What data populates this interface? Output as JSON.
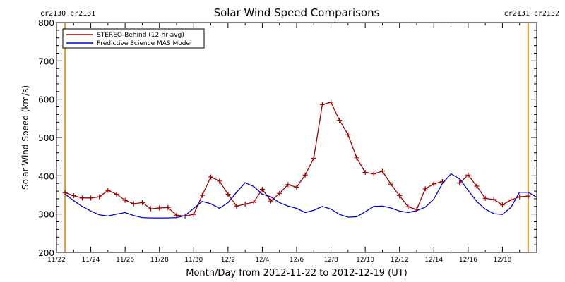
{
  "chart_data": {
    "type": "line",
    "title": "Solar Wind Speed Comparisons",
    "xlabel": "Month/Day from 2012-11-22 to 2012-12-19 (UT)",
    "ylabel": "Solar Wind Speed (km/s)",
    "xlim": [
      "2012-11-22T00:00",
      "2012-12-20T00:00"
    ],
    "ylim": [
      200,
      800
    ],
    "yticks": [
      200,
      300,
      400,
      500,
      600,
      700,
      800
    ],
    "xtick_labels": [
      "11/22",
      "11/24",
      "11/26",
      "11/28",
      "11/30",
      "12/2",
      "12/4",
      "12/6",
      "12/8",
      "12/10",
      "12/12",
      "12/14",
      "12/16",
      "12/18"
    ],
    "grid": false,
    "legend_position": "top-left",
    "rotation_labels": {
      "left": "cr2130 cr2131",
      "right": "cr2131 cr2132",
      "color": "#e8951e"
    },
    "rotation_markers": [
      "2012-11-22T12:00",
      "2012-12-19T12:00"
    ],
    "series": [
      {
        "name": "STEREO-Behind (12-hr avg)",
        "color": "#a00000",
        "marker": "plus",
        "points": [
          [
            "2012-11-22T12:00",
            356
          ],
          [
            "2012-11-23T00:00",
            348
          ],
          [
            "2012-11-23T12:00",
            342
          ],
          [
            "2012-11-24T00:00",
            342
          ],
          [
            "2012-11-24T12:00",
            345
          ],
          [
            "2012-11-25T00:00",
            362
          ],
          [
            "2012-11-25T12:00",
            352
          ],
          [
            "2012-11-26T00:00",
            336
          ],
          [
            "2012-11-26T12:00",
            327
          ],
          [
            "2012-11-27T00:00",
            330
          ],
          [
            "2012-11-27T12:00",
            314
          ],
          [
            "2012-11-28T00:00",
            316
          ],
          [
            "2012-11-28T12:00",
            317
          ],
          [
            "2012-11-29T00:00",
            297
          ],
          [
            "2012-11-29T12:00",
            295
          ],
          [
            "2012-11-30T00:00",
            299
          ],
          [
            "2012-11-30T12:00",
            349
          ],
          [
            "2012-12-01T00:00",
            397
          ],
          [
            "2012-12-01T12:00",
            386
          ],
          [
            "2012-12-02T00:00",
            352
          ],
          [
            "2012-12-02T12:00",
            321
          ],
          [
            "2012-12-03T00:00",
            326
          ],
          [
            "2012-12-03T12:00",
            331
          ],
          [
            "2012-12-04T00:00",
            365
          ],
          [
            "2012-12-04T12:00",
            334
          ],
          [
            "2012-12-05T00:00",
            354
          ],
          [
            "2012-12-05T12:00",
            377
          ],
          [
            "2012-12-06T00:00",
            370
          ],
          [
            "2012-12-06T12:00",
            402
          ],
          [
            "2012-12-07T00:00",
            446
          ],
          [
            "2012-12-07T12:00",
            586
          ],
          [
            "2012-12-08T00:00",
            592
          ],
          [
            "2012-12-08T12:00",
            545
          ],
          [
            "2012-12-09T00:00",
            507
          ],
          [
            "2012-12-09T12:00",
            447
          ],
          [
            "2012-12-10T00:00",
            409
          ],
          [
            "2012-12-10T12:00",
            405
          ],
          [
            "2012-12-11T00:00",
            412
          ],
          [
            "2012-12-11T12:00",
            378
          ],
          [
            "2012-12-12T00:00",
            348
          ],
          [
            "2012-12-12T12:00",
            319
          ],
          [
            "2012-12-13T00:00",
            312
          ],
          [
            "2012-12-13T12:00",
            366
          ],
          [
            "2012-12-14T00:00",
            379
          ],
          [
            "2012-12-14T12:00",
            385
          ],
          null,
          [
            "2012-12-15T12:00",
            381
          ],
          [
            "2012-12-16T00:00",
            402
          ],
          [
            "2012-12-16T12:00",
            373
          ],
          [
            "2012-12-17T00:00",
            341
          ],
          [
            "2012-12-17T12:00",
            338
          ],
          [
            "2012-12-18T00:00",
            324
          ],
          [
            "2012-12-18T12:00",
            337
          ],
          [
            "2012-12-19T00:00",
            345
          ],
          [
            "2012-12-19T12:00",
            347
          ]
        ]
      },
      {
        "name": "Predictive Science MAS Model",
        "color": "#0000cc",
        "marker": "none",
        "points": [
          [
            "2012-11-22T12:00",
            352
          ],
          [
            "2012-11-23T00:00",
            335
          ],
          [
            "2012-11-23T12:00",
            320
          ],
          [
            "2012-11-24T00:00",
            308
          ],
          [
            "2012-11-24T12:00",
            298
          ],
          [
            "2012-11-25T00:00",
            295
          ],
          [
            "2012-11-25T12:00",
            300
          ],
          [
            "2012-11-26T00:00",
            304
          ],
          [
            "2012-11-26T12:00",
            296
          ],
          [
            "2012-11-27T00:00",
            291
          ],
          [
            "2012-11-27T12:00",
            290
          ],
          [
            "2012-11-28T00:00",
            290
          ],
          [
            "2012-11-28T12:00",
            290
          ],
          [
            "2012-11-29T00:00",
            291
          ],
          [
            "2012-11-29T12:00",
            296
          ],
          [
            "2012-11-30T00:00",
            315
          ],
          [
            "2012-11-30T12:00",
            333
          ],
          [
            "2012-12-01T00:00",
            327
          ],
          [
            "2012-12-01T12:00",
            315
          ],
          [
            "2012-12-02T00:00",
            330
          ],
          [
            "2012-12-02T12:00",
            357
          ],
          [
            "2012-12-03T00:00",
            382
          ],
          [
            "2012-12-03T12:00",
            372
          ],
          [
            "2012-12-04T00:00",
            352
          ],
          [
            "2012-12-04T12:00",
            345
          ],
          [
            "2012-12-05T00:00",
            330
          ],
          [
            "2012-12-05T12:00",
            321
          ],
          [
            "2012-12-06T00:00",
            315
          ],
          [
            "2012-12-06T12:00",
            304
          ],
          [
            "2012-12-07T00:00",
            310
          ],
          [
            "2012-12-07T12:00",
            320
          ],
          [
            "2012-12-08T00:00",
            313
          ],
          [
            "2012-12-08T12:00",
            299
          ],
          [
            "2012-12-09T00:00",
            292
          ],
          [
            "2012-12-09T12:00",
            293
          ],
          [
            "2012-12-10T00:00",
            306
          ],
          [
            "2012-12-10T12:00",
            320
          ],
          [
            "2012-12-11T00:00",
            321
          ],
          [
            "2012-12-11T12:00",
            316
          ],
          [
            "2012-12-12T00:00",
            308
          ],
          [
            "2012-12-12T12:00",
            304
          ],
          [
            "2012-12-13T00:00",
            309
          ],
          [
            "2012-12-13T12:00",
            318
          ],
          [
            "2012-12-14T00:00",
            339
          ],
          [
            "2012-12-14T12:00",
            380
          ],
          [
            "2012-12-15T00:00",
            405
          ],
          [
            "2012-12-15T12:00",
            392
          ],
          [
            "2012-12-16T00:00",
            362
          ],
          [
            "2012-12-16T12:00",
            333
          ],
          [
            "2012-12-17T00:00",
            313
          ],
          [
            "2012-12-17T12:00",
            301
          ],
          [
            "2012-12-18T00:00",
            299
          ],
          [
            "2012-12-18T12:00",
            318
          ],
          [
            "2012-12-19T00:00",
            357
          ],
          [
            "2012-12-19T12:00",
            357
          ],
          [
            "2012-12-20T00:00",
            344
          ]
        ]
      }
    ]
  }
}
